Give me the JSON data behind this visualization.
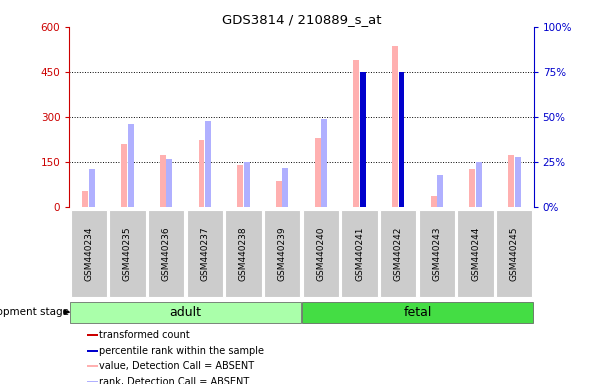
{
  "title": "GDS3814 / 210889_s_at",
  "samples": [
    "GSM440234",
    "GSM440235",
    "GSM440236",
    "GSM440237",
    "GSM440238",
    "GSM440239",
    "GSM440240",
    "GSM440241",
    "GSM440242",
    "GSM440243",
    "GSM440244",
    "GSM440245"
  ],
  "absent_values": [
    55,
    210,
    175,
    225,
    140,
    88,
    232,
    490,
    535,
    38,
    128,
    175
  ],
  "absent_ranks": [
    21,
    46,
    27,
    48,
    25,
    22,
    49,
    74,
    73,
    18,
    25,
    28
  ],
  "present_values": [
    null,
    null,
    null,
    null,
    null,
    null,
    null,
    null,
    null,
    null,
    null,
    null
  ],
  "present_ranks": [
    null,
    null,
    null,
    null,
    null,
    null,
    null,
    75,
    75,
    null,
    null,
    null
  ],
  "groups": [
    {
      "label": "adult",
      "indices": [
        0,
        1,
        2,
        3,
        4,
        5
      ],
      "color": "#aaffaa"
    },
    {
      "label": "fetal",
      "indices": [
        6,
        7,
        8,
        9,
        10,
        11
      ],
      "color": "#44dd44"
    }
  ],
  "left_ylim": [
    0,
    600
  ],
  "right_ylim": [
    0,
    100
  ],
  "left_yticks": [
    0,
    150,
    300,
    450,
    600
  ],
  "right_yticks": [
    0,
    25,
    50,
    75,
    100
  ],
  "left_yticklabels": [
    "0",
    "150",
    "300",
    "450",
    "600"
  ],
  "right_yticklabels": [
    "0%",
    "25%",
    "50%",
    "75%",
    "100%"
  ],
  "left_tick_color": "#cc0000",
  "right_tick_color": "#0000cc",
  "absent_bar_color": "#ffb0b0",
  "absent_rank_color": "#b0b0ff",
  "present_bar_color": "#cc0000",
  "present_rank_color": "#0000cc",
  "bg_color": "#ffffff",
  "sample_box_color": "#cccccc",
  "legend_items": [
    {
      "label": "transformed count",
      "color": "#cc0000"
    },
    {
      "label": "percentile rank within the sample",
      "color": "#0000cc"
    },
    {
      "label": "value, Detection Call = ABSENT",
      "color": "#ffb0b0"
    },
    {
      "label": "rank, Detection Call = ABSENT",
      "color": "#b0b0ff"
    }
  ],
  "development_stage_label": "development stage",
  "rank_scale": 6.0
}
